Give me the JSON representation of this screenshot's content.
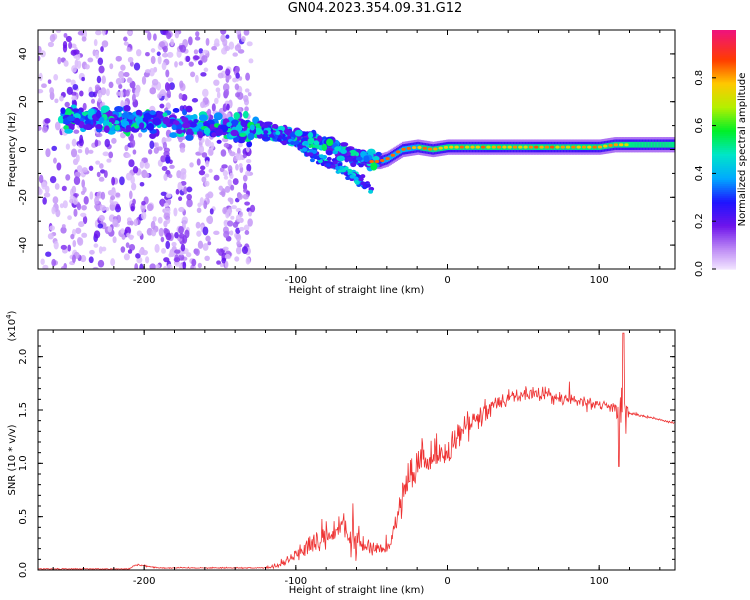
{
  "title": "GN04.2023.354.09.31.G12",
  "chart_data": [
    {
      "type": "heatmap",
      "xlabel": "Height of straight line (km)",
      "ylabel": "Frequency (Hz)",
      "xlim": [
        -270,
        150
      ],
      "ylim": [
        -50,
        50
      ],
      "xticks": [
        -200,
        -100,
        0,
        100
      ],
      "yticks": [
        -40,
        -20,
        0,
        20,
        40
      ],
      "colorbar": {
        "label": "Normalized spectral amplitude",
        "ticks": [
          "0.0",
          "0.2",
          "0.4",
          "0.6",
          "0.8"
        ],
        "range": [
          0,
          1
        ]
      },
      "ridge": {
        "x": [
          -245,
          -200,
          -150,
          -120,
          -100,
          -80,
          -60,
          -50,
          -45,
          -40,
          -35,
          -30,
          -20,
          -10,
          0,
          50,
          100,
          110,
          150
        ],
        "freq": [
          13,
          12,
          9,
          8,
          5,
          2,
          -3,
          -5,
          -5,
          -4,
          -2,
          0,
          1,
          0,
          1,
          1,
          1,
          2,
          2
        ]
      },
      "branch": {
        "x": [
          -120,
          -100,
          -80,
          -65,
          -55,
          -50
        ],
        "freq": [
          8,
          2,
          -5,
          -10,
          -14,
          -16
        ]
      }
    },
    {
      "type": "line",
      "xlabel": "Height of straight line (km)",
      "ylabel": "SNR (10 * v/v)",
      "y_multiplier": "(x10^4)",
      "xlim": [
        -270,
        150
      ],
      "ylim": [
        0,
        2.25
      ],
      "xticks": [
        -200,
        -100,
        0,
        100
      ],
      "yticks": [
        "0.0",
        "0.5",
        "1.0",
        "1.5",
        "2.0"
      ],
      "color": "#ee3333",
      "envelope": {
        "x": [
          -270,
          -210,
          -205,
          -190,
          -120,
          -110,
          -100,
          -80,
          -70,
          -60,
          -50,
          -40,
          -35,
          -30,
          -20,
          -10,
          0,
          10,
          20,
          30,
          40,
          50,
          60,
          70,
          80,
          90,
          100,
          110,
          114,
          116,
          120,
          130,
          150
        ],
        "mean": [
          0.01,
          0.01,
          0.05,
          0.02,
          0.02,
          0.05,
          0.15,
          0.3,
          0.4,
          0.25,
          0.2,
          0.2,
          0.4,
          0.7,
          0.95,
          1.05,
          1.1,
          1.3,
          1.45,
          1.55,
          1.62,
          1.65,
          1.65,
          1.62,
          1.6,
          1.58,
          1.55,
          1.52,
          1.5,
          1.48,
          1.47,
          1.44,
          1.38
        ],
        "spread": [
          0.01,
          0.01,
          0.02,
          0.01,
          0.01,
          0.06,
          0.12,
          0.25,
          0.3,
          0.25,
          0.15,
          0.1,
          0.2,
          0.35,
          0.35,
          0.3,
          0.25,
          0.2,
          0.18,
          0.15,
          0.12,
          0.12,
          0.14,
          0.12,
          0.1,
          0.1,
          0.1,
          0.1,
          0.3,
          0.6,
          0.02,
          0.02,
          0.02
        ]
      },
      "peak": {
        "x": 116,
        "y": 2.22
      },
      "dip": {
        "x": 113,
        "y": 0.97
      }
    }
  ]
}
